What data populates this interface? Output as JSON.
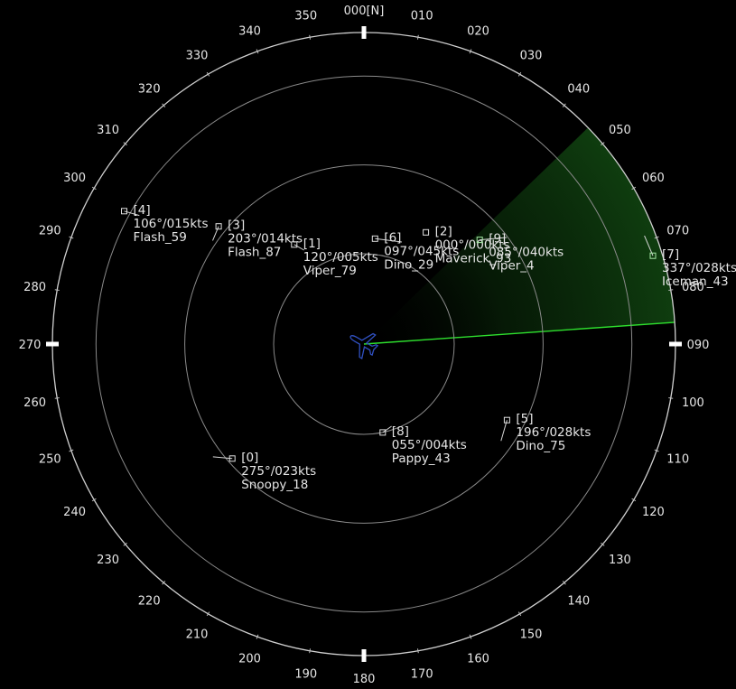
{
  "compass": {
    "labels": [
      {
        "deg": 0,
        "text": "000[N]"
      },
      {
        "deg": 10,
        "text": "010"
      },
      {
        "deg": 20,
        "text": "020"
      },
      {
        "deg": 30,
        "text": "030"
      },
      {
        "deg": 40,
        "text": "040"
      },
      {
        "deg": 50,
        "text": "050"
      },
      {
        "deg": 60,
        "text": "060"
      },
      {
        "deg": 70,
        "text": "070"
      },
      {
        "deg": 80,
        "text": "080"
      },
      {
        "deg": 90,
        "text": "090"
      },
      {
        "deg": 100,
        "text": "100"
      },
      {
        "deg": 110,
        "text": "110"
      },
      {
        "deg": 120,
        "text": "120"
      },
      {
        "deg": 130,
        "text": "130"
      },
      {
        "deg": 140,
        "text": "140"
      },
      {
        "deg": 150,
        "text": "150"
      },
      {
        "deg": 160,
        "text": "160"
      },
      {
        "deg": 170,
        "text": "170"
      },
      {
        "deg": 180,
        "text": "180"
      },
      {
        "deg": 190,
        "text": "190"
      },
      {
        "deg": 200,
        "text": "200"
      },
      {
        "deg": 210,
        "text": "210"
      },
      {
        "deg": 220,
        "text": "220"
      },
      {
        "deg": 230,
        "text": "230"
      },
      {
        "deg": 240,
        "text": "240"
      },
      {
        "deg": 250,
        "text": "250"
      },
      {
        "deg": 260,
        "text": "260"
      },
      {
        "deg": 270,
        "text": "270"
      },
      {
        "deg": 280,
        "text": "280"
      },
      {
        "deg": 290,
        "text": "290"
      },
      {
        "deg": 300,
        "text": "300"
      },
      {
        "deg": 310,
        "text": "310"
      },
      {
        "deg": 320,
        "text": "320"
      },
      {
        "deg": 330,
        "text": "330"
      },
      {
        "deg": 340,
        "text": "340"
      },
      {
        "deg": 350,
        "text": "350"
      }
    ]
  },
  "sweep": {
    "heading_deg": 86,
    "trail_deg": 40,
    "line_color": "#2ee02e",
    "trail_color": "#0c3a0c"
  },
  "ownship": {
    "icon": "airplane-icon",
    "color": "#3050c0",
    "heading_deg": 300
  },
  "colors": {
    "rings": "#8a8a8a",
    "outer": "#d0d0d0",
    "text": "#e6e6e6",
    "target_mark": "#e0e0e0",
    "target_fresh": "#a6e8a6"
  },
  "targets": [
    {
      "id": "[0]",
      "bearing": 229,
      "range": 0.56,
      "heading": 275,
      "speed": "275°/023kts",
      "name": "Snoopy_18"
    },
    {
      "id": "[1]",
      "bearing": 325,
      "range": 0.39,
      "heading": 120,
      "speed": "120°/005kts",
      "name": "Viper_79"
    },
    {
      "id": "[2]",
      "bearing": 29,
      "range": 0.41,
      "heading": 0,
      "speed": "000°/000kts",
      "name": "Maverick_93"
    },
    {
      "id": "[3]",
      "bearing": 309,
      "range": 0.6,
      "heading": 203,
      "speed": "203°/014kts",
      "name": "Flash_87"
    },
    {
      "id": "[4]",
      "bearing": 299,
      "range": 0.88,
      "heading": 106,
      "speed": "106°/015kts",
      "name": "Flash_59"
    },
    {
      "id": "[5]",
      "bearing": 118,
      "range": 0.52,
      "heading": 196,
      "speed": "196°/028kts",
      "name": "Dino_75"
    },
    {
      "id": "[6]",
      "bearing": 6,
      "range": 0.34,
      "heading": 97,
      "speed": "097°/045kts",
      "name": "Dino_29"
    },
    {
      "id": "[7]",
      "bearing": 73,
      "range": 0.97,
      "heading": 337,
      "speed": "337°/028kts",
      "name": "Iceman_43"
    },
    {
      "id": "[8]",
      "bearing": 168,
      "range": 0.29,
      "heading": 55,
      "speed": "055°/004kts",
      "name": "Pappy_43"
    },
    {
      "id": "[9]",
      "bearing": 48,
      "range": 0.5,
      "heading": 85,
      "speed": "085°/040kts",
      "name": "Viper_4"
    }
  ]
}
